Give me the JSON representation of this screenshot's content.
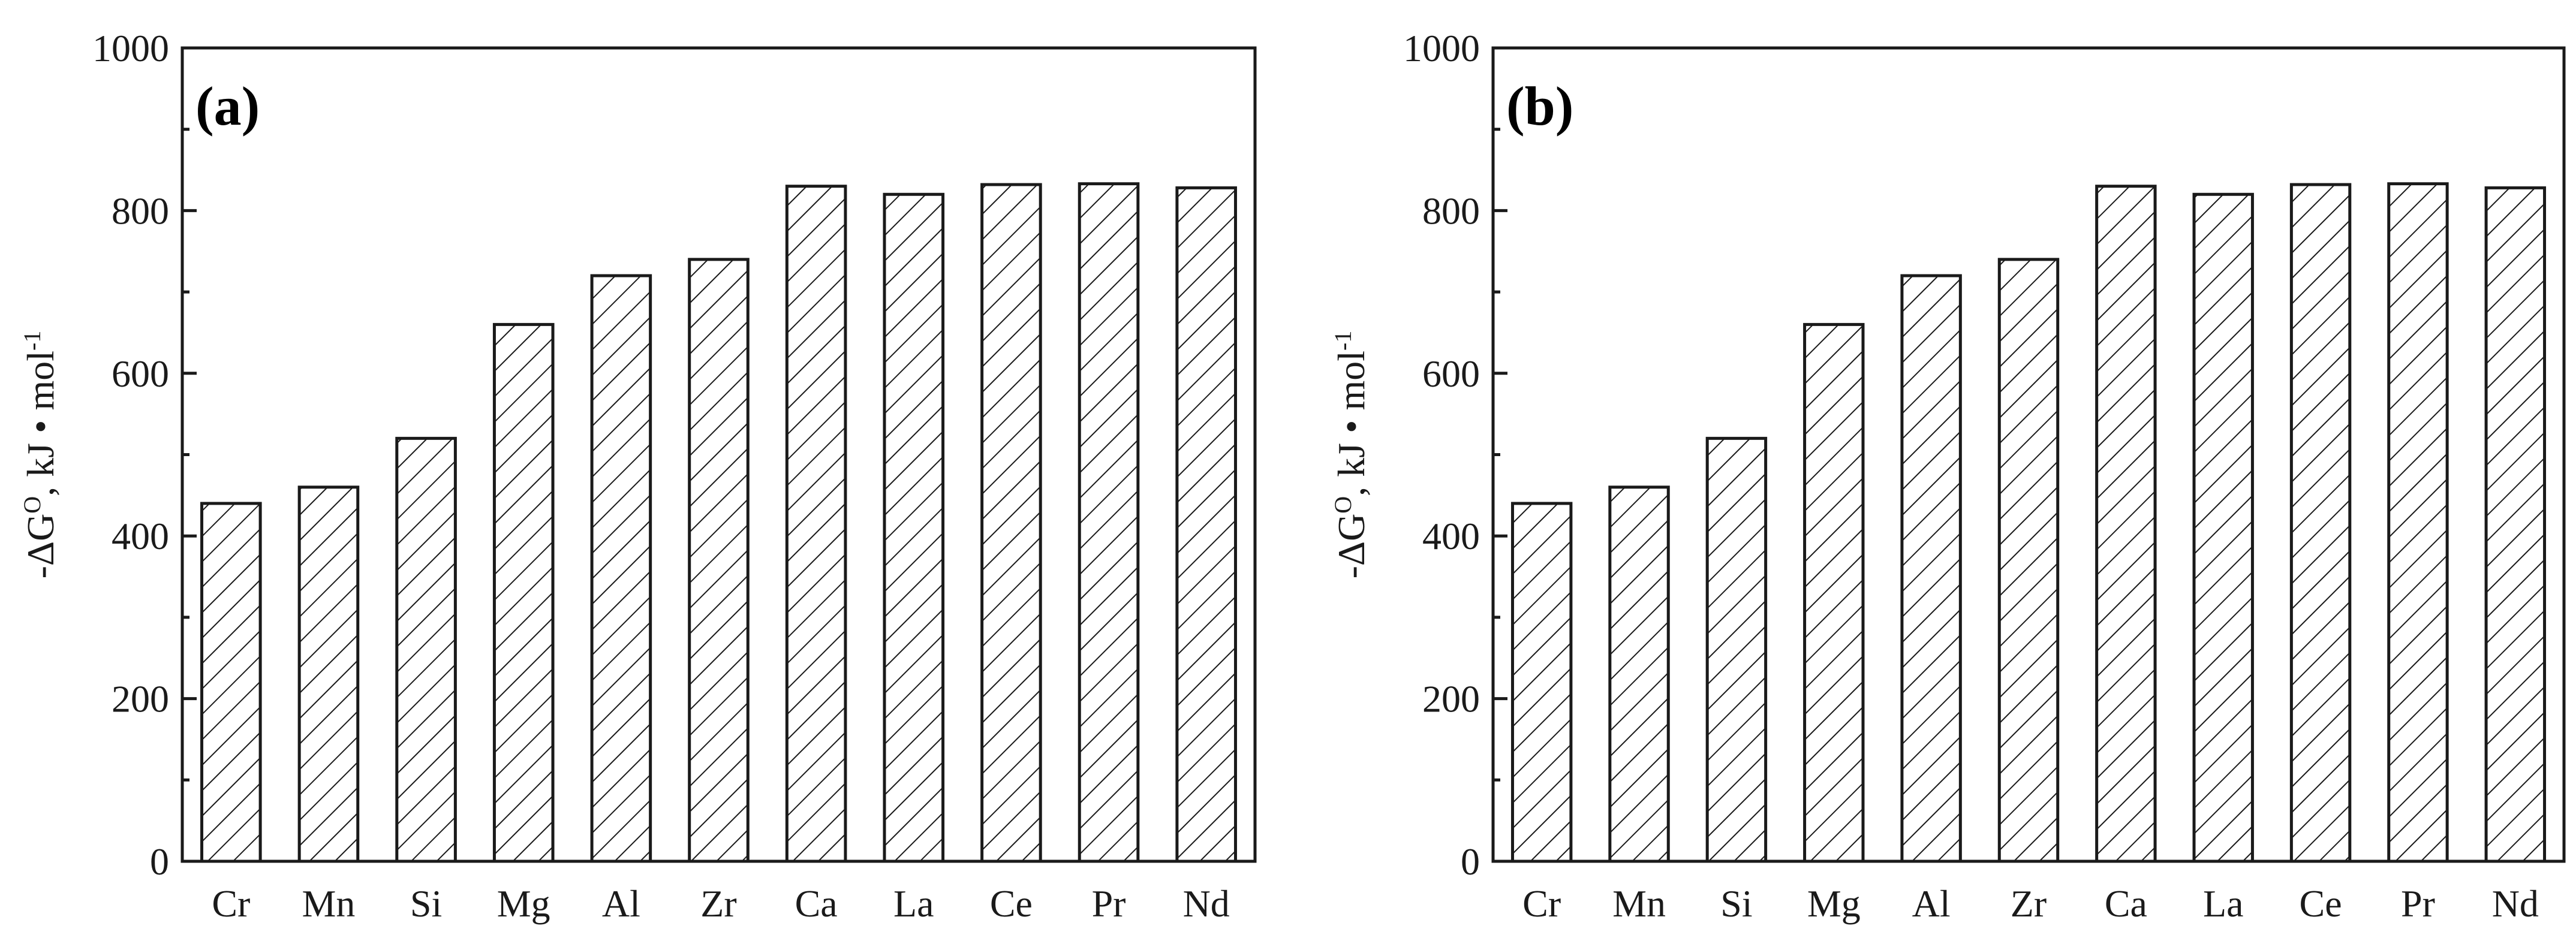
{
  "chart_data": [
    {
      "type": "bar",
      "panel_label": "(a)",
      "ylabel": {
        "prefix": "-ΔG",
        "sup1": "O",
        "mid": ", kJ • mol",
        "sup2": "-1"
      },
      "categories": [
        "Cr",
        "Mn",
        "Si",
        "Mg",
        "Al",
        "Zr",
        "Ca",
        "La",
        "Ce",
        "Pr",
        "Nd"
      ],
      "values": [
        440,
        460,
        520,
        660,
        720,
        740,
        830,
        820,
        832,
        833,
        828
      ],
      "ylim": [
        0,
        1000
      ],
      "yticks": [
        "0",
        "200",
        "400",
        "600",
        "800",
        "1000"
      ],
      "grid": false
    },
    {
      "type": "bar",
      "panel_label": "(b)",
      "ylabel": {
        "prefix": "-ΔG",
        "sup1": "O",
        "mid": ", kJ • mol",
        "sup2": "-1"
      },
      "categories": [
        "Cr",
        "Mn",
        "Si",
        "Mg",
        "Al",
        "Zr",
        "Ca",
        "La",
        "Ce",
        "Pr",
        "Nd"
      ],
      "values": [
        440,
        460,
        520,
        660,
        720,
        740,
        830,
        820,
        832,
        833,
        828
      ],
      "ylim": [
        0,
        1000
      ],
      "yticks": [
        "0",
        "200",
        "400",
        "600",
        "800",
        "1000"
      ],
      "grid": false
    }
  ],
  "colors": {
    "ink": "#1a1a1a",
    "background": "#ffffff"
  }
}
